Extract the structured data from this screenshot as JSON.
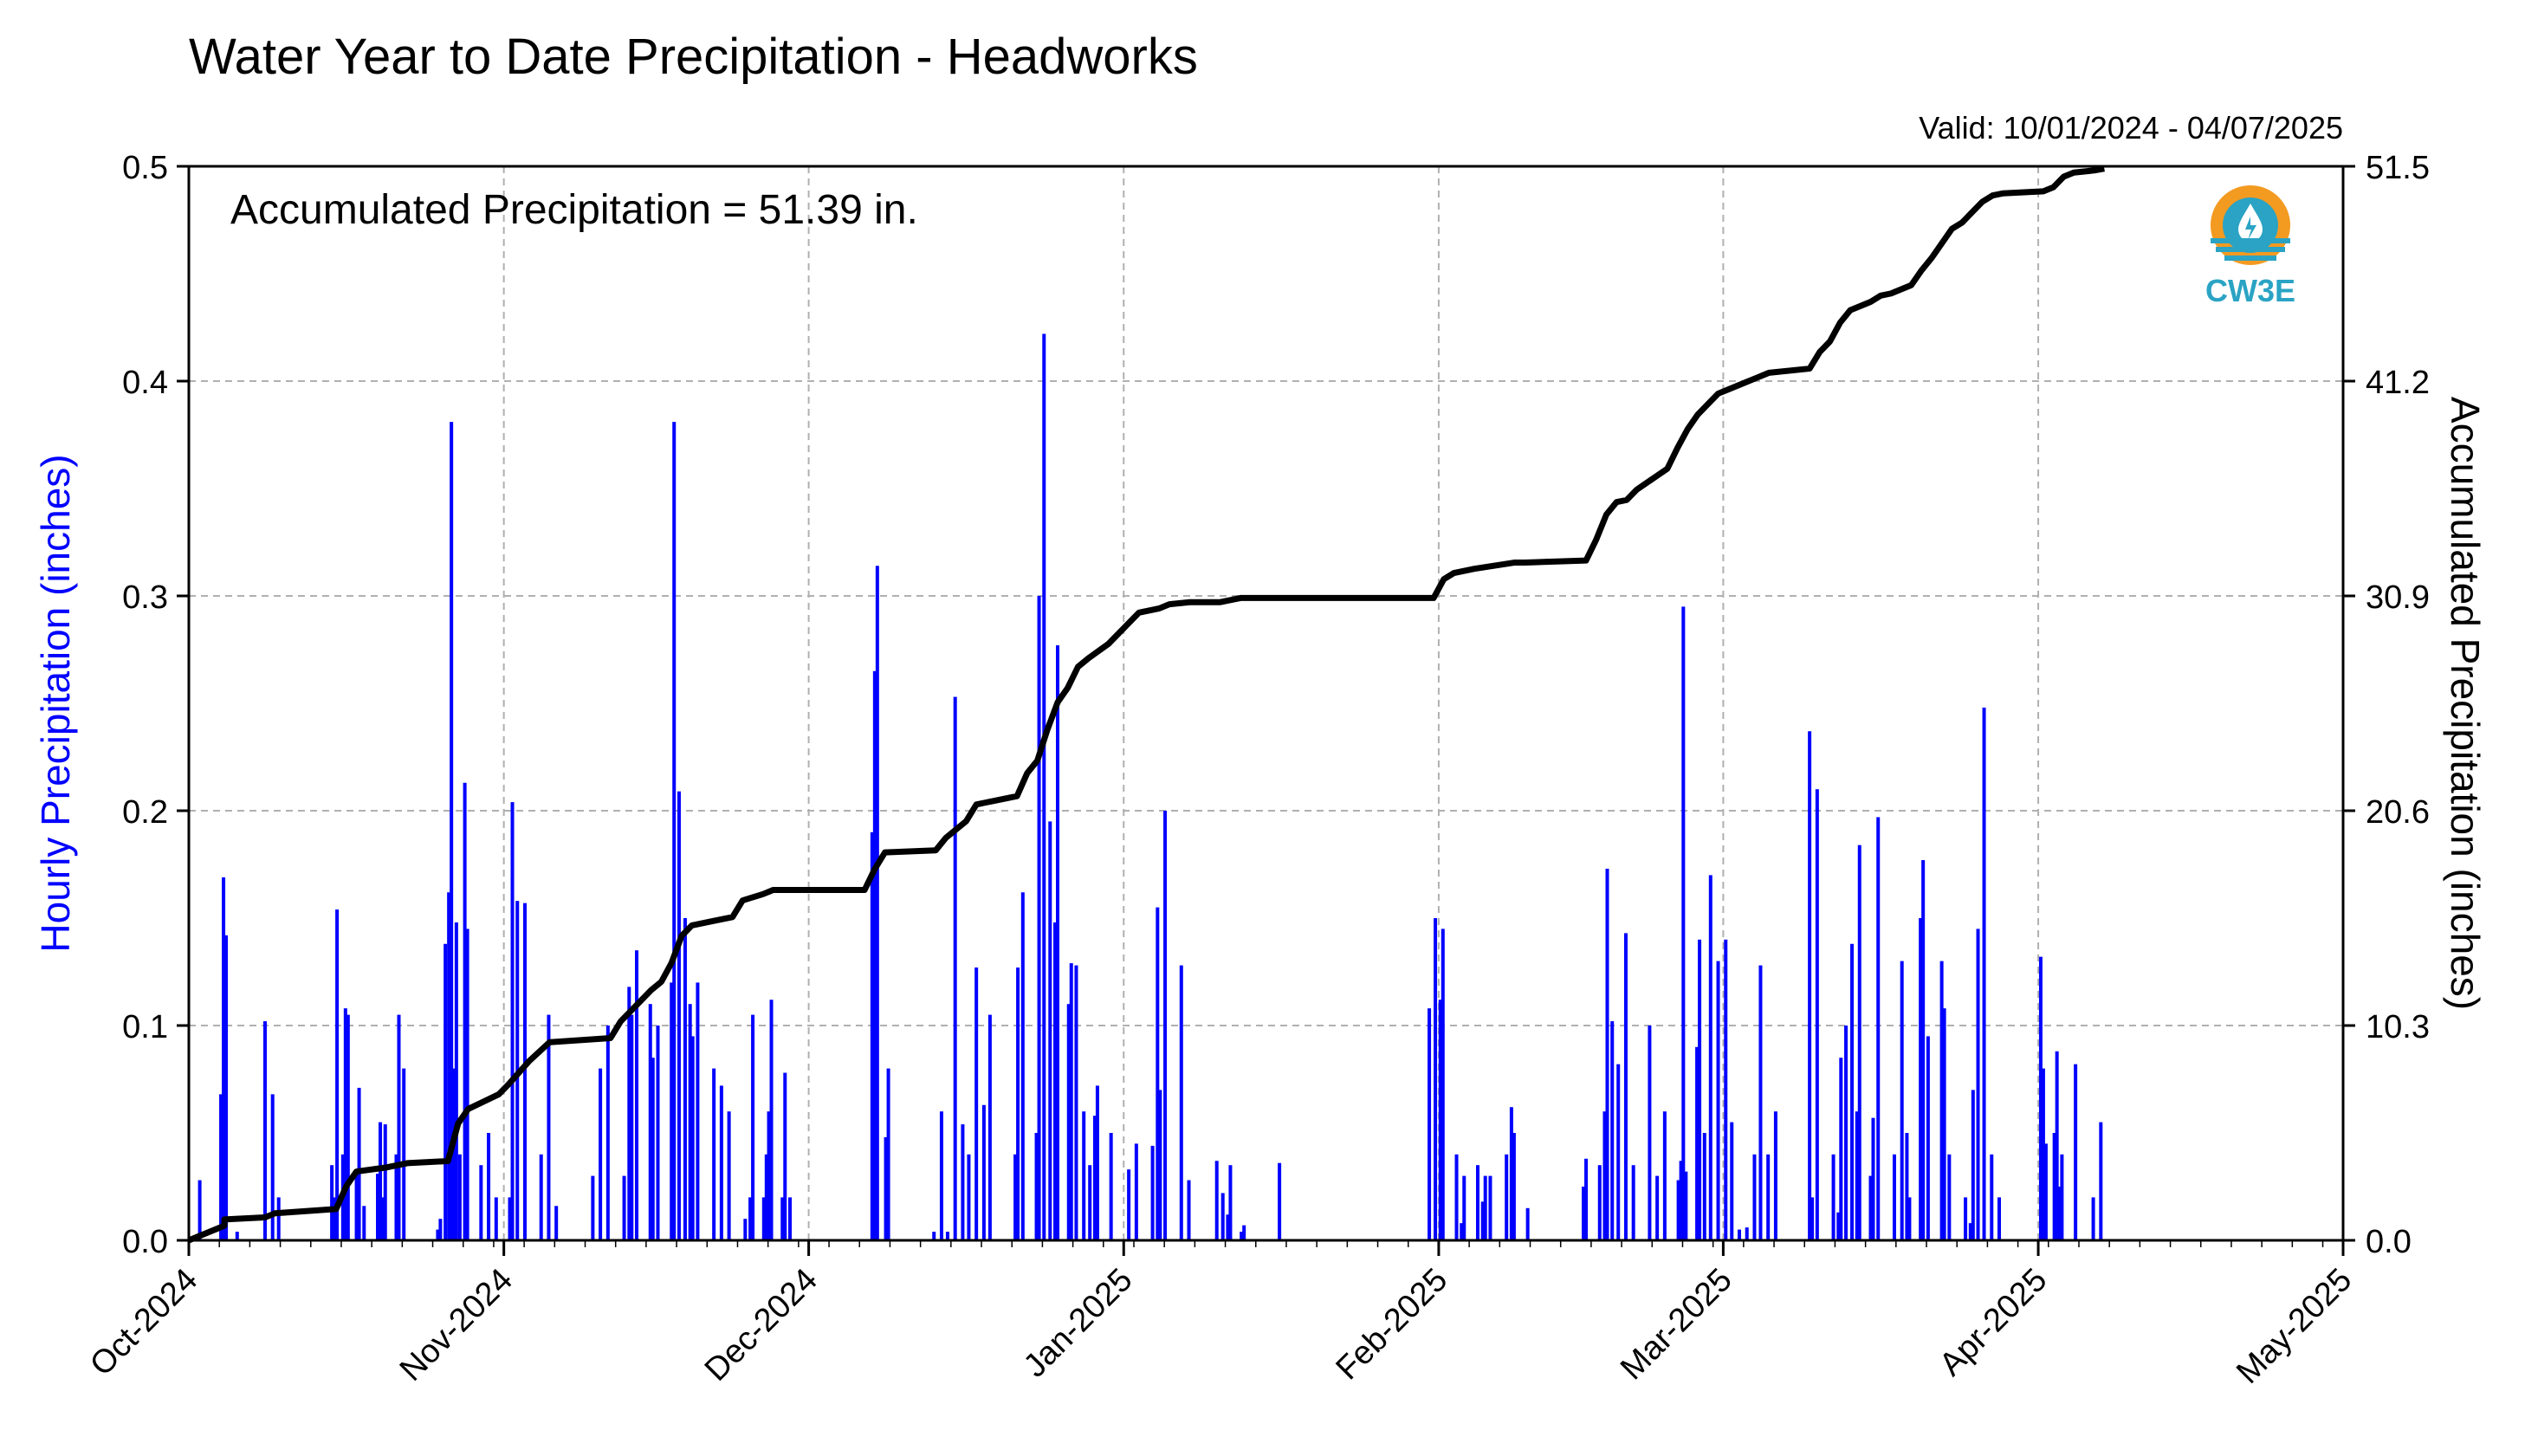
{
  "chart_data": {
    "type": "bar",
    "title": "Water Year to Date Precipitation - Headworks",
    "valid_label": "Valid: 10/01/2024 - 04/07/2025",
    "annotation": "Accumulated Precipitation = 51.39 in.",
    "ylabel_left": "Hourly Precipitation (inches)",
    "ylabel_right": "Accumulated Precipitation (inches)",
    "x_ticks": [
      "Oct-2024",
      "Nov-2024",
      "Dec-2024",
      "Jan-2025",
      "Feb-2025",
      "Mar-2025",
      "Apr-2025",
      "May-2025"
    ],
    "x_tick_dates": [
      "2024-10-01",
      "2024-11-01",
      "2024-12-01",
      "2025-01-01",
      "2025-02-01",
      "2025-03-01",
      "2025-04-01",
      "2025-05-01"
    ],
    "xlim": [
      "2024-10-01",
      "2025-05-01"
    ],
    "y_left_ticks": [
      "0.0",
      "0.1",
      "0.2",
      "0.3",
      "0.4",
      "0.5"
    ],
    "y_left_lim": [
      0,
      0.5
    ],
    "y_right_ticks": [
      "0.0",
      "10.3",
      "20.6",
      "30.9",
      "41.2",
      "51.5"
    ],
    "y_right_lim": [
      0,
      51.5
    ],
    "grid": true,
    "logo_text": "CW3E",
    "colors": {
      "hourly": "#0000ff",
      "accumulated": "#000000",
      "grid": "#b0b0b0",
      "logo_orange": "#f39a21",
      "logo_blue": "#2aa3c4"
    },
    "series": [
      {
        "name": "Hourly Precipitation (inches)",
        "axis": "left",
        "style": "bars",
        "x": [
          "2024-10-02",
          "2024-10-04",
          "2024-10-04",
          "2024-10-04",
          "2024-10-05",
          "2024-10-08",
          "2024-10-09",
          "2024-10-09",
          "2024-10-15",
          "2024-10-15",
          "2024-10-15",
          "2024-10-16",
          "2024-10-16",
          "2024-10-16",
          "2024-10-17",
          "2024-10-17",
          "2024-10-18",
          "2024-10-19",
          "2024-10-19",
          "2024-10-20",
          "2024-10-20",
          "2024-10-21",
          "2024-10-21",
          "2024-10-22",
          "2024-10-25",
          "2024-10-25",
          "2024-10-26",
          "2024-10-26",
          "2024-10-26",
          "2024-10-27",
          "2024-10-27",
          "2024-10-27",
          "2024-10-28",
          "2024-10-28",
          "2024-10-29",
          "2024-10-30",
          "2024-10-31",
          "2024-11-01",
          "2024-11-01",
          "2024-11-02",
          "2024-11-03",
          "2024-11-04",
          "2024-11-05",
          "2024-11-06",
          "2024-11-09",
          "2024-11-10",
          "2024-11-11",
          "2024-11-12",
          "2024-11-13",
          "2024-11-13",
          "2024-11-14",
          "2024-11-15",
          "2024-11-15",
          "2024-11-16",
          "2024-11-17",
          "2024-11-17",
          "2024-11-18",
          "2024-11-18",
          "2024-11-19",
          "2024-11-19",
          "2024-11-20",
          "2024-11-21",
          "2024-11-22",
          "2024-11-23",
          "2024-11-24",
          "2024-11-25",
          "2024-11-25",
          "2024-11-26",
          "2024-11-26",
          "2024-11-27",
          "2024-11-27",
          "2024-11-28",
          "2024-11-28",
          "2024-11-29",
          "2024-12-07",
          "2024-12-07",
          "2024-12-07",
          "2024-12-08",
          "2024-12-08",
          "2024-12-13",
          "2024-12-14",
          "2024-12-14",
          "2024-12-15",
          "2024-12-16",
          "2024-12-16",
          "2024-12-17",
          "2024-12-18",
          "2024-12-18",
          "2024-12-21",
          "2024-12-21",
          "2024-12-22",
          "2024-12-23",
          "2024-12-23",
          "2024-12-24",
          "2024-12-24",
          "2024-12-25",
          "2024-12-25",
          "2024-12-26",
          "2024-12-26",
          "2024-12-27",
          "2024-12-28",
          "2024-12-28",
          "2024-12-29",
          "2024-12-29",
          "2024-12-30",
          "2025-01-01",
          "2025-01-02",
          "2025-01-03",
          "2025-01-04",
          "2025-01-04",
          "2025-01-05",
          "2025-01-06",
          "2025-01-07",
          "2025-01-10",
          "2025-01-10",
          "2025-01-11",
          "2025-01-11",
          "2025-01-12",
          "2025-01-12",
          "2025-01-16",
          "2025-01-31",
          "2025-01-31",
          "2025-02-01",
          "2025-02-01",
          "2025-02-02",
          "2025-02-03",
          "2025-02-03",
          "2025-02-04",
          "2025-02-05",
          "2025-02-05",
          "2025-02-06",
          "2025-02-07",
          "2025-02-08",
          "2025-02-08",
          "2025-02-09",
          "2025-02-15",
          "2025-02-15",
          "2025-02-16",
          "2025-02-17",
          "2025-02-17",
          "2025-02-18",
          "2025-02-18",
          "2025-02-19",
          "2025-02-20",
          "2025-02-21",
          "2025-02-22",
          "2025-02-23",
          "2025-02-24",
          "2025-02-24",
          "2025-02-25",
          "2025-02-25",
          "2025-02-26",
          "2025-02-26",
          "2025-02-27",
          "2025-02-27",
          "2025-02-28",
          "2025-03-01",
          "2025-03-01",
          "2025-03-02",
          "2025-03-03",
          "2025-03-04",
          "2025-03-04",
          "2025-03-05",
          "2025-03-06",
          "2025-03-09",
          "2025-03-09",
          "2025-03-10",
          "2025-03-11",
          "2025-03-12",
          "2025-03-12",
          "2025-03-13",
          "2025-03-13",
          "2025-03-14",
          "2025-03-14",
          "2025-03-15",
          "2025-03-15",
          "2025-03-16",
          "2025-03-17",
          "2025-03-18",
          "2025-03-19",
          "2025-03-19",
          "2025-03-20",
          "2025-03-20",
          "2025-03-21",
          "2025-03-22",
          "2025-03-22",
          "2025-03-23",
          "2025-03-24",
          "2025-03-25",
          "2025-03-25",
          "2025-03-26",
          "2025-03-26",
          "2025-03-27",
          "2025-03-28",
          "2025-04-01",
          "2025-04-01",
          "2025-04-01",
          "2025-04-02",
          "2025-04-02",
          "2025-04-03",
          "2025-04-03",
          "2025-04-04",
          "2025-04-06",
          "2025-04-07"
        ],
        "values": [
          0.028,
          0.142,
          0.169,
          0.068,
          0.004,
          0.102,
          0.068,
          0.02,
          0.154,
          0.02,
          0.035,
          0.105,
          0.108,
          0.04,
          0.071,
          0.031,
          0.016,
          0.055,
          0.031,
          0.054,
          0.02,
          0.105,
          0.04,
          0.08,
          0.01,
          0.005,
          0.138,
          0.381,
          0.162,
          0.148,
          0.08,
          0.04,
          0.145,
          0.213,
          0.035,
          0.05,
          0.02,
          0.204,
          0.02,
          0.158,
          0.157,
          0.04,
          0.105,
          0.016,
          0.03,
          0.08,
          0.1,
          0.03,
          0.105,
          0.118,
          0.135,
          0.085,
          0.11,
          0.1,
          0.381,
          0.12,
          0.209,
          0.15,
          0.095,
          0.11,
          0.12,
          0.08,
          0.072,
          0.06,
          0.01,
          0.105,
          0.02,
          0.04,
          0.02,
          0.112,
          0.06,
          0.078,
          0.02,
          0.02,
          0.314,
          0.265,
          0.19,
          0.08,
          0.048,
          0.004,
          0.06,
          0.004,
          0.253,
          0.054,
          0.04,
          0.127,
          0.063,
          0.105,
          0.127,
          0.04,
          0.162,
          0.3,
          0.05,
          0.422,
          0.195,
          0.277,
          0.148,
          0.129,
          0.11,
          0.128,
          0.06,
          0.035,
          0.072,
          0.058,
          0.05,
          0.033,
          0.045,
          0.044,
          0.07,
          0.155,
          0.2,
          0.128,
          0.028,
          0.037,
          0.022,
          0.035,
          0.012,
          0.007,
          0.004,
          0.036,
          0.108,
          0.15,
          0.145,
          0.112,
          0.04,
          0.03,
          0.008,
          0.035,
          0.03,
          0.018,
          0.03,
          0.04,
          0.05,
          0.062,
          0.015,
          0.038,
          0.025,
          0.035,
          0.173,
          0.06,
          0.102,
          0.082,
          0.143,
          0.035,
          0.1,
          0.03,
          0.06,
          0.037,
          0.028,
          0.032,
          0.295,
          0.14,
          0.09,
          0.05,
          0.17,
          0.13,
          0.14,
          0.055,
          0.005,
          0.006,
          0.04,
          0.128,
          0.04,
          0.06,
          0.02,
          0.237,
          0.21,
          0.04,
          0.085,
          0.013,
          0.1,
          0.138,
          0.184,
          0.06,
          0.057,
          0.03,
          0.197,
          0.04,
          0.13,
          0.02,
          0.05,
          0.177,
          0.15,
          0.095,
          0.108,
          0.13,
          0.04,
          0.02,
          0.07,
          0.008,
          0.145,
          0.248,
          0.04,
          0.02,
          0.045,
          0.08,
          0.132,
          0.088,
          0.05,
          0.04,
          0.025,
          0.082,
          0.02,
          0.055
        ]
      },
      {
        "name": "Accumulated Precipitation (inches)",
        "axis": "right",
        "style": "line",
        "x": [
          "2024-10-01",
          "2024-10-02",
          "2024-10-04",
          "2024-10-04",
          "2024-10-08",
          "2024-10-09",
          "2024-10-15",
          "2024-10-16",
          "2024-10-17",
          "2024-10-20",
          "2024-10-22",
          "2024-10-26",
          "2024-10-27",
          "2024-10-28",
          "2024-10-31",
          "2024-11-01",
          "2024-11-03",
          "2024-11-05",
          "2024-11-11",
          "2024-11-12",
          "2024-11-13",
          "2024-11-15",
          "2024-11-16",
          "2024-11-17",
          "2024-11-18",
          "2024-11-19",
          "2024-11-21",
          "2024-11-23",
          "2024-11-24",
          "2024-11-26",
          "2024-11-27",
          "2024-11-29",
          "2024-12-06",
          "2024-12-07",
          "2024-12-08",
          "2024-12-13",
          "2024-12-14",
          "2024-12-16",
          "2024-12-17",
          "2024-12-18",
          "2024-12-21",
          "2024-12-22",
          "2024-12-23",
          "2024-12-24",
          "2024-12-25",
          "2024-12-26",
          "2024-12-27",
          "2024-12-28",
          "2024-12-30",
          "2025-01-01",
          "2025-01-02",
          "2025-01-04",
          "2025-01-05",
          "2025-01-07",
          "2025-01-10",
          "2025-01-11",
          "2025-01-12",
          "2025-01-31",
          "2025-02-01",
          "2025-02-02",
          "2025-02-04",
          "2025-02-08",
          "2025-02-09",
          "2025-02-15",
          "2025-02-16",
          "2025-02-17",
          "2025-02-18",
          "2025-02-19",
          "2025-02-20",
          "2025-02-23",
          "2025-02-24",
          "2025-02-25",
          "2025-02-26",
          "2025-02-27",
          "2025-02-28",
          "2025-03-01",
          "2025-03-03",
          "2025-03-04",
          "2025-03-05",
          "2025-03-09",
          "2025-03-10",
          "2025-03-11",
          "2025-03-12",
          "2025-03-13",
          "2025-03-15",
          "2025-03-16",
          "2025-03-17",
          "2025-03-19",
          "2025-03-20",
          "2025-03-21",
          "2025-03-22",
          "2025-03-23",
          "2025-03-24",
          "2025-03-25",
          "2025-03-26",
          "2025-03-27",
          "2025-03-28",
          "2025-04-01",
          "2025-04-02",
          "2025-04-03",
          "2025-04-04",
          "2025-04-06",
          "2025-04-07"
        ],
        "values": [
          0.0,
          0.3,
          0.7,
          1.0,
          1.1,
          1.3,
          1.5,
          2.6,
          3.3,
          3.5,
          3.7,
          3.8,
          5.6,
          6.3,
          7.0,
          7.5,
          8.6,
          9.5,
          9.7,
          10.5,
          11.0,
          12.0,
          12.4,
          13.3,
          14.6,
          15.1,
          15.3,
          15.5,
          16.3,
          16.6,
          16.8,
          16.8,
          16.8,
          17.8,
          18.6,
          18.7,
          19.3,
          20.1,
          20.9,
          21.0,
          21.3,
          22.4,
          23.0,
          24.5,
          25.8,
          26.5,
          27.5,
          27.9,
          28.6,
          29.6,
          30.1,
          30.3,
          30.5,
          30.6,
          30.6,
          30.7,
          30.8,
          30.8,
          31.7,
          32.0,
          32.2,
          32.5,
          32.5,
          32.6,
          33.6,
          34.8,
          35.4,
          35.5,
          36.0,
          37.0,
          38.0,
          38.9,
          39.6,
          40.1,
          40.6,
          40.8,
          41.2,
          41.4,
          41.6,
          41.8,
          42.6,
          43.1,
          44.0,
          44.6,
          45.0,
          45.3,
          45.4,
          45.8,
          46.5,
          47.1,
          47.8,
          48.5,
          48.8,
          49.3,
          49.8,
          50.1,
          50.2,
          50.3,
          50.5,
          51.0,
          51.2,
          51.3,
          51.39
        ]
      }
    ]
  }
}
